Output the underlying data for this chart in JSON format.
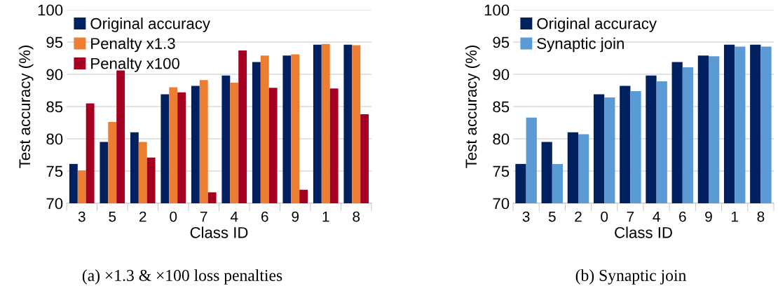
{
  "chart_data": [
    {
      "type": "bar",
      "categories": [
        "3",
        "5",
        "2",
        "0",
        "7",
        "4",
        "6",
        "9",
        "1",
        "8"
      ],
      "xlabel": "Class ID",
      "ylabel": "Test accuracy (%)",
      "ylim": [
        70,
        100
      ],
      "yticks": [
        70,
        75,
        80,
        85,
        90,
        95,
        100
      ],
      "grid": "y",
      "legend": "top left",
      "series": [
        {
          "name": "Original accuracy",
          "color": "#002060",
          "values": [
            76.1,
            79.5,
            81.0,
            86.9,
            88.2,
            89.8,
            91.9,
            92.9,
            94.6,
            94.6
          ]
        },
        {
          "name": "Penalty x1.3",
          "color": "#ed7d31",
          "values": [
            75.1,
            82.6,
            79.5,
            88.0,
            89.1,
            88.7,
            92.9,
            93.1,
            94.7,
            94.5
          ]
        },
        {
          "name": "Penalty x100",
          "color": "#a50021",
          "values": [
            85.5,
            90.6,
            77.1,
            87.2,
            71.7,
            93.7,
            87.9,
            72.1,
            87.8,
            83.8
          ]
        }
      ],
      "annotations": [
        "(a) ×1.3 & ×100 loss penalties"
      ]
    },
    {
      "type": "bar",
      "categories": [
        "3",
        "5",
        "2",
        "0",
        "7",
        "4",
        "6",
        "9",
        "1",
        "8"
      ],
      "xlabel": "Class ID",
      "ylabel": "Test accuracy (%)",
      "ylim": [
        70,
        100
      ],
      "yticks": [
        70,
        75,
        80,
        85,
        90,
        95,
        100
      ],
      "grid": "y",
      "legend": "top left",
      "series": [
        {
          "name": "Original accuracy",
          "color": "#002060",
          "values": [
            76.1,
            79.5,
            81.0,
            86.9,
            88.2,
            89.8,
            91.9,
            92.9,
            94.6,
            94.6
          ]
        },
        {
          "name": "Synaptic join",
          "color": "#5b9bd5",
          "values": [
            83.3,
            76.1,
            80.7,
            86.4,
            87.4,
            88.9,
            91.1,
            92.8,
            94.3,
            94.3
          ]
        }
      ],
      "annotations": [
        "(b) Synaptic join"
      ]
    }
  ]
}
